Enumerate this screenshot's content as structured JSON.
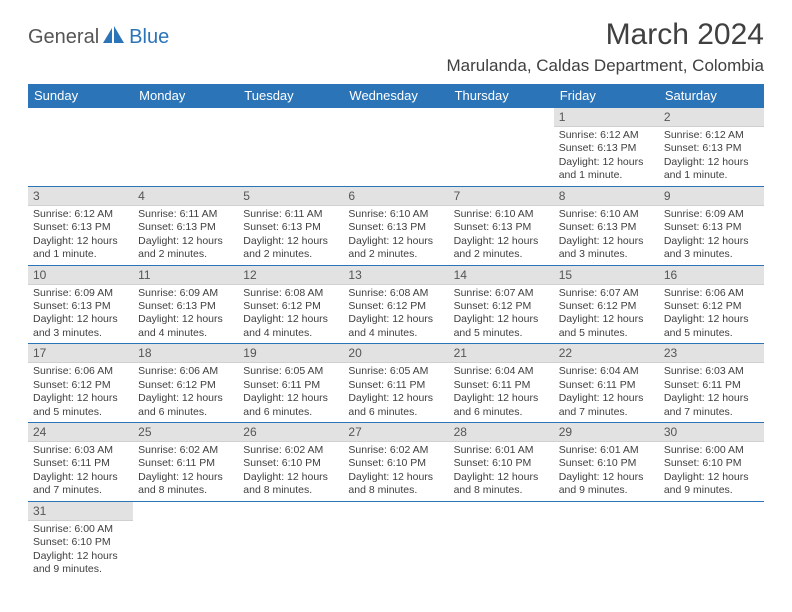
{
  "logo": {
    "part1": "General",
    "part2": "Blue"
  },
  "title": "March 2024",
  "location": "Marulanda, Caldas Department, Colombia",
  "colors": {
    "header_bg": "#2b74b8",
    "header_fg": "#ffffff",
    "daynum_bg": "#e2e2e2",
    "border": "#2b74b8",
    "text": "#404040"
  },
  "weekdays": [
    "Sunday",
    "Monday",
    "Tuesday",
    "Wednesday",
    "Thursday",
    "Friday",
    "Saturday"
  ],
  "weeks": [
    [
      null,
      null,
      null,
      null,
      null,
      {
        "n": "1",
        "sr": "Sunrise: 6:12 AM",
        "ss": "Sunset: 6:13 PM",
        "d1": "Daylight: 12 hours",
        "d2": "and 1 minute."
      },
      {
        "n": "2",
        "sr": "Sunrise: 6:12 AM",
        "ss": "Sunset: 6:13 PM",
        "d1": "Daylight: 12 hours",
        "d2": "and 1 minute."
      }
    ],
    [
      {
        "n": "3",
        "sr": "Sunrise: 6:12 AM",
        "ss": "Sunset: 6:13 PM",
        "d1": "Daylight: 12 hours",
        "d2": "and 1 minute."
      },
      {
        "n": "4",
        "sr": "Sunrise: 6:11 AM",
        "ss": "Sunset: 6:13 PM",
        "d1": "Daylight: 12 hours",
        "d2": "and 2 minutes."
      },
      {
        "n": "5",
        "sr": "Sunrise: 6:11 AM",
        "ss": "Sunset: 6:13 PM",
        "d1": "Daylight: 12 hours",
        "d2": "and 2 minutes."
      },
      {
        "n": "6",
        "sr": "Sunrise: 6:10 AM",
        "ss": "Sunset: 6:13 PM",
        "d1": "Daylight: 12 hours",
        "d2": "and 2 minutes."
      },
      {
        "n": "7",
        "sr": "Sunrise: 6:10 AM",
        "ss": "Sunset: 6:13 PM",
        "d1": "Daylight: 12 hours",
        "d2": "and 2 minutes."
      },
      {
        "n": "8",
        "sr": "Sunrise: 6:10 AM",
        "ss": "Sunset: 6:13 PM",
        "d1": "Daylight: 12 hours",
        "d2": "and 3 minutes."
      },
      {
        "n": "9",
        "sr": "Sunrise: 6:09 AM",
        "ss": "Sunset: 6:13 PM",
        "d1": "Daylight: 12 hours",
        "d2": "and 3 minutes."
      }
    ],
    [
      {
        "n": "10",
        "sr": "Sunrise: 6:09 AM",
        "ss": "Sunset: 6:13 PM",
        "d1": "Daylight: 12 hours",
        "d2": "and 3 minutes."
      },
      {
        "n": "11",
        "sr": "Sunrise: 6:09 AM",
        "ss": "Sunset: 6:13 PM",
        "d1": "Daylight: 12 hours",
        "d2": "and 4 minutes."
      },
      {
        "n": "12",
        "sr": "Sunrise: 6:08 AM",
        "ss": "Sunset: 6:12 PM",
        "d1": "Daylight: 12 hours",
        "d2": "and 4 minutes."
      },
      {
        "n": "13",
        "sr": "Sunrise: 6:08 AM",
        "ss": "Sunset: 6:12 PM",
        "d1": "Daylight: 12 hours",
        "d2": "and 4 minutes."
      },
      {
        "n": "14",
        "sr": "Sunrise: 6:07 AM",
        "ss": "Sunset: 6:12 PM",
        "d1": "Daylight: 12 hours",
        "d2": "and 5 minutes."
      },
      {
        "n": "15",
        "sr": "Sunrise: 6:07 AM",
        "ss": "Sunset: 6:12 PM",
        "d1": "Daylight: 12 hours",
        "d2": "and 5 minutes."
      },
      {
        "n": "16",
        "sr": "Sunrise: 6:06 AM",
        "ss": "Sunset: 6:12 PM",
        "d1": "Daylight: 12 hours",
        "d2": "and 5 minutes."
      }
    ],
    [
      {
        "n": "17",
        "sr": "Sunrise: 6:06 AM",
        "ss": "Sunset: 6:12 PM",
        "d1": "Daylight: 12 hours",
        "d2": "and 5 minutes."
      },
      {
        "n": "18",
        "sr": "Sunrise: 6:06 AM",
        "ss": "Sunset: 6:12 PM",
        "d1": "Daylight: 12 hours",
        "d2": "and 6 minutes."
      },
      {
        "n": "19",
        "sr": "Sunrise: 6:05 AM",
        "ss": "Sunset: 6:11 PM",
        "d1": "Daylight: 12 hours",
        "d2": "and 6 minutes."
      },
      {
        "n": "20",
        "sr": "Sunrise: 6:05 AM",
        "ss": "Sunset: 6:11 PM",
        "d1": "Daylight: 12 hours",
        "d2": "and 6 minutes."
      },
      {
        "n": "21",
        "sr": "Sunrise: 6:04 AM",
        "ss": "Sunset: 6:11 PM",
        "d1": "Daylight: 12 hours",
        "d2": "and 6 minutes."
      },
      {
        "n": "22",
        "sr": "Sunrise: 6:04 AM",
        "ss": "Sunset: 6:11 PM",
        "d1": "Daylight: 12 hours",
        "d2": "and 7 minutes."
      },
      {
        "n": "23",
        "sr": "Sunrise: 6:03 AM",
        "ss": "Sunset: 6:11 PM",
        "d1": "Daylight: 12 hours",
        "d2": "and 7 minutes."
      }
    ],
    [
      {
        "n": "24",
        "sr": "Sunrise: 6:03 AM",
        "ss": "Sunset: 6:11 PM",
        "d1": "Daylight: 12 hours",
        "d2": "and 7 minutes."
      },
      {
        "n": "25",
        "sr": "Sunrise: 6:02 AM",
        "ss": "Sunset: 6:11 PM",
        "d1": "Daylight: 12 hours",
        "d2": "and 8 minutes."
      },
      {
        "n": "26",
        "sr": "Sunrise: 6:02 AM",
        "ss": "Sunset: 6:10 PM",
        "d1": "Daylight: 12 hours",
        "d2": "and 8 minutes."
      },
      {
        "n": "27",
        "sr": "Sunrise: 6:02 AM",
        "ss": "Sunset: 6:10 PM",
        "d1": "Daylight: 12 hours",
        "d2": "and 8 minutes."
      },
      {
        "n": "28",
        "sr": "Sunrise: 6:01 AM",
        "ss": "Sunset: 6:10 PM",
        "d1": "Daylight: 12 hours",
        "d2": "and 8 minutes."
      },
      {
        "n": "29",
        "sr": "Sunrise: 6:01 AM",
        "ss": "Sunset: 6:10 PM",
        "d1": "Daylight: 12 hours",
        "d2": "and 9 minutes."
      },
      {
        "n": "30",
        "sr": "Sunrise: 6:00 AM",
        "ss": "Sunset: 6:10 PM",
        "d1": "Daylight: 12 hours",
        "d2": "and 9 minutes."
      }
    ],
    [
      {
        "n": "31",
        "sr": "Sunrise: 6:00 AM",
        "ss": "Sunset: 6:10 PM",
        "d1": "Daylight: 12 hours",
        "d2": "and 9 minutes."
      },
      null,
      null,
      null,
      null,
      null,
      null
    ]
  ]
}
